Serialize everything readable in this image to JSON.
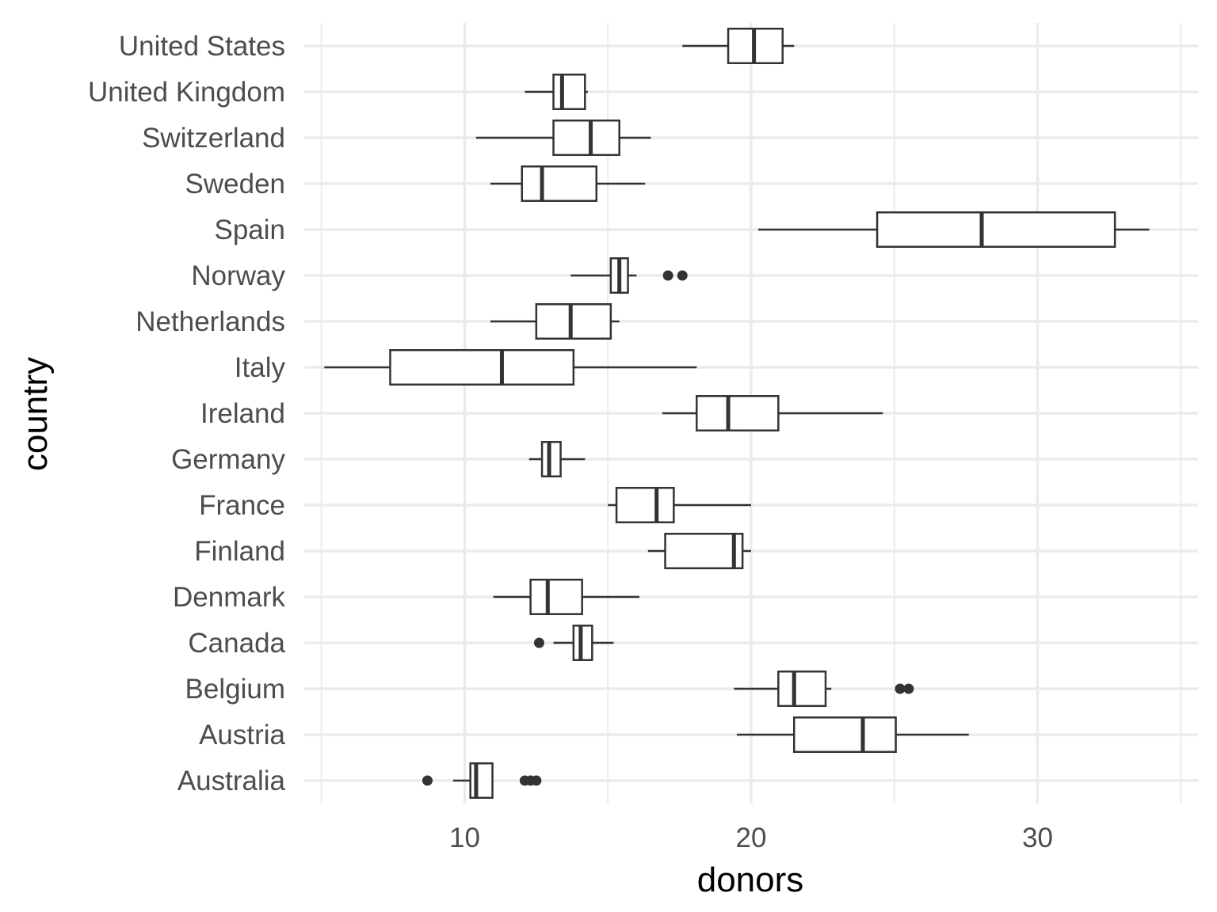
{
  "chart_data": {
    "type": "boxplot",
    "orientation": "horizontal",
    "xlabel": "donors",
    "ylabel": "country",
    "xlim": [
      4.4,
      35.6
    ],
    "xticks": [
      10,
      20,
      30
    ],
    "xtick_labels": [
      "10",
      "20",
      "30"
    ],
    "grid": true,
    "categories": [
      "Australia",
      "Austria",
      "Belgium",
      "Canada",
      "Denmark",
      "Finland",
      "France",
      "Germany",
      "Ireland",
      "Italy",
      "Netherlands",
      "Norway",
      "Spain",
      "Sweden",
      "Switzerland",
      "United Kingdom",
      "United States"
    ],
    "boxes": [
      {
        "country": "Australia",
        "whisker_low": 9.6,
        "q1": 10.2,
        "median": 10.4,
        "q3": 10.97,
        "whisker_high": 10.97,
        "outliers": [
          8.7,
          12.1,
          12.3,
          12.5
        ]
      },
      {
        "country": "Austria",
        "whisker_low": 19.5,
        "q1": 21.5,
        "median": 23.9,
        "q3": 25.05,
        "whisker_high": 27.6,
        "outliers": []
      },
      {
        "country": "Belgium",
        "whisker_low": 19.4,
        "q1": 20.95,
        "median": 21.5,
        "q3": 22.6,
        "whisker_high": 22.8,
        "outliers": [
          25.2,
          25.5
        ]
      },
      {
        "country": "Canada",
        "whisker_low": 13.1,
        "q1": 13.8,
        "median": 14.05,
        "q3": 14.45,
        "whisker_high": 15.2,
        "outliers": [
          12.6
        ]
      },
      {
        "country": "Denmark",
        "whisker_low": 11.0,
        "q1": 12.3,
        "median": 12.9,
        "q3": 14.1,
        "whisker_high": 16.1,
        "outliers": []
      },
      {
        "country": "Finland",
        "whisker_low": 16.4,
        "q1": 17.0,
        "median": 19.4,
        "q3": 19.7,
        "whisker_high": 20.0,
        "outliers": []
      },
      {
        "country": "France",
        "whisker_low": 15.0,
        "q1": 15.3,
        "median": 16.7,
        "q3": 17.3,
        "whisker_high": 20.0,
        "outliers": []
      },
      {
        "country": "Germany",
        "whisker_low": 12.25,
        "q1": 12.7,
        "median": 12.95,
        "q3": 13.35,
        "whisker_high": 14.2,
        "outliers": []
      },
      {
        "country": "Ireland",
        "whisker_low": 16.9,
        "q1": 18.1,
        "median": 19.2,
        "q3": 20.95,
        "whisker_high": 24.6,
        "outliers": []
      },
      {
        "country": "Italy",
        "whisker_low": 5.1,
        "q1": 7.4,
        "median": 11.3,
        "q3": 13.8,
        "whisker_high": 18.1,
        "outliers": []
      },
      {
        "country": "Netherlands",
        "whisker_low": 10.9,
        "q1": 12.5,
        "median": 13.7,
        "q3": 15.1,
        "whisker_high": 15.4,
        "outliers": []
      },
      {
        "country": "Norway",
        "whisker_low": 13.7,
        "q1": 15.1,
        "median": 15.4,
        "q3": 15.7,
        "whisker_high": 16.0,
        "outliers": [
          17.1,
          17.6
        ]
      },
      {
        "country": "Spain",
        "whisker_low": 20.25,
        "q1": 24.4,
        "median": 28.05,
        "q3": 32.7,
        "whisker_high": 33.9,
        "outliers": []
      },
      {
        "country": "Sweden",
        "whisker_low": 10.9,
        "q1": 12.0,
        "median": 12.7,
        "q3": 14.6,
        "whisker_high": 16.3,
        "outliers": []
      },
      {
        "country": "Switzerland",
        "whisker_low": 10.4,
        "q1": 13.1,
        "median": 14.4,
        "q3": 15.4,
        "whisker_high": 16.5,
        "outliers": []
      },
      {
        "country": "United Kingdom",
        "whisker_low": 12.1,
        "q1": 13.1,
        "median": 13.4,
        "q3": 14.2,
        "whisker_high": 14.3,
        "outliers": []
      },
      {
        "country": "United States",
        "whisker_low": 17.6,
        "q1": 19.2,
        "median": 20.1,
        "q3": 21.1,
        "whisker_high": 21.5,
        "outliers": []
      }
    ]
  },
  "colors": {
    "box_stroke": "#333333",
    "outlier": "#333333",
    "grid": "#ebebeb",
    "tick_label": "#4d4d4d",
    "axis_title": "#000000",
    "background": "#ffffff"
  }
}
